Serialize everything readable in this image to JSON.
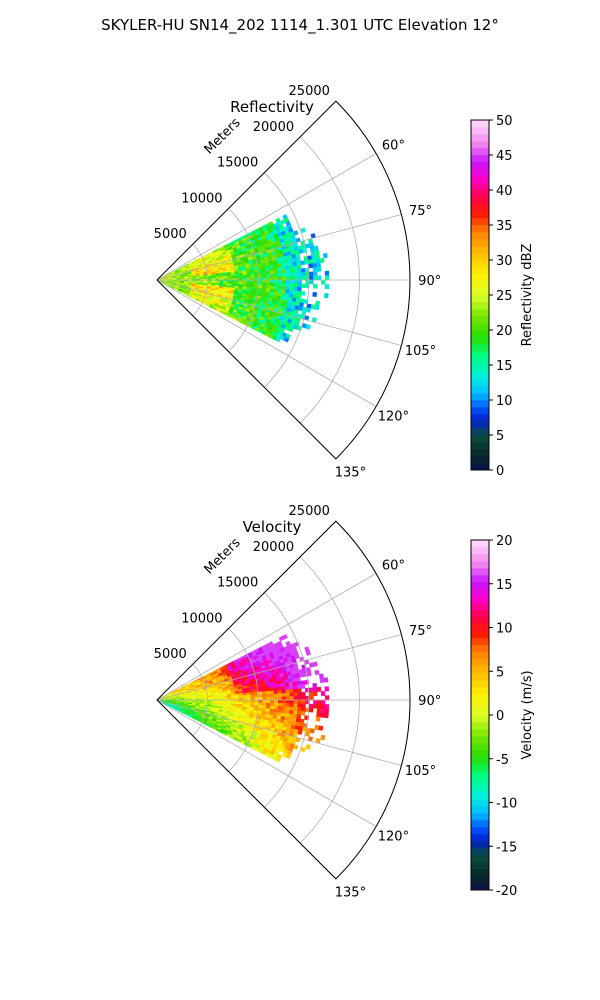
{
  "figure": {
    "title": "SKYLER-HU  SN14_202  1114_1.301 UTC Elevation 12°"
  },
  "chart_data": [
    {
      "type": "heatmap",
      "projection": "polar-sector",
      "title": "Reflectivity",
      "radial_axis_label": "Meters",
      "radial_ticks": [
        5000,
        10000,
        15000,
        20000,
        25000
      ],
      "radial_tick_labels": [
        "5000",
        "10000",
        "15000",
        "20000",
        "25000"
      ],
      "rmax": 25000,
      "azimuth_range_deg": [
        45,
        135
      ],
      "azimuth_ticks_deg": [
        60,
        75,
        90,
        105,
        120,
        135
      ],
      "azimuth_tick_labels": [
        "60°",
        "75°",
        "90°",
        "105°",
        "120°",
        "135°"
      ],
      "grid": true,
      "colorbar": {
        "label": "Reflectivity dBZ",
        "min": 0,
        "max": 50,
        "ticks": [
          0,
          5,
          10,
          15,
          20,
          25,
          30,
          35,
          40,
          45,
          50
        ],
        "tick_labels": [
          "0",
          "5",
          "10",
          "15",
          "20",
          "25",
          "30",
          "35",
          "40",
          "45",
          "50"
        ]
      },
      "echo_extent_m": 17000,
      "echo_azimuth_range_deg": [
        63,
        117
      ]
    },
    {
      "type": "heatmap",
      "projection": "polar-sector",
      "title": "Velocity",
      "radial_axis_label": "Meters",
      "radial_ticks": [
        5000,
        10000,
        15000,
        20000,
        25000
      ],
      "radial_tick_labels": [
        "5000",
        "10000",
        "15000",
        "20000",
        "25000"
      ],
      "rmax": 25000,
      "azimuth_range_deg": [
        45,
        135
      ],
      "azimuth_ticks_deg": [
        60,
        75,
        90,
        105,
        120,
        135
      ],
      "azimuth_tick_labels": [
        "60°",
        "75°",
        "90°",
        "105°",
        "120°",
        "135°"
      ],
      "grid": true,
      "colorbar": {
        "label": "Velocity (m/s)",
        "min": -20,
        "max": 20,
        "ticks": [
          -20,
          -15,
          -10,
          -5,
          0,
          5,
          10,
          15,
          20
        ],
        "tick_labels": [
          "-20",
          "-15",
          "-10",
          "-5",
          "0",
          "5",
          "10",
          "15",
          "20"
        ]
      },
      "echo_extent_m": 17000,
      "echo_azimuth_range_deg": [
        63,
        117
      ]
    }
  ]
}
